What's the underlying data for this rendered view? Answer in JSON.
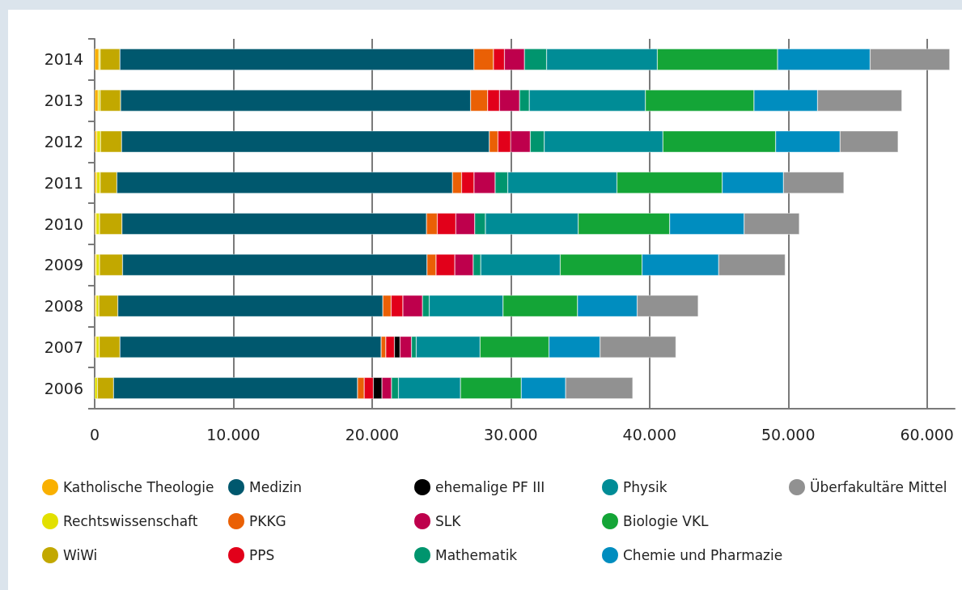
{
  "chart_data": {
    "type": "bar",
    "orientation": "horizontal",
    "stacked": true,
    "categories": [
      "2014",
      "2013",
      "2012",
      "2011",
      "2010",
      "2009",
      "2008",
      "2007",
      "2006"
    ],
    "xlim": [
      0,
      62000
    ],
    "xticks": [
      {
        "value": 0,
        "label": "0"
      },
      {
        "value": 10000,
        "label": "10.000"
      },
      {
        "value": 20000,
        "label": "20.000"
      },
      {
        "value": 30000,
        "label": "30.000"
      },
      {
        "value": 40000,
        "label": "40.000"
      },
      {
        "value": 50000,
        "label": "50.000"
      },
      {
        "value": 60000,
        "label": "60.000"
      }
    ],
    "grid": "x",
    "legend": "bottom",
    "marker": "circle",
    "series": [
      {
        "name": "Katholische Theologie",
        "color": "#f9b000",
        "values": [
          300,
          250,
          150,
          130,
          100,
          100,
          100,
          100,
          null
        ]
      },
      {
        "name": "Rechtswissenschaft",
        "color": "#e2e000",
        "values": [
          100,
          150,
          270,
          270,
          250,
          250,
          200,
          230,
          200
        ]
      },
      {
        "name": "WiWi",
        "color": "#c2a800",
        "values": [
          1420,
          1470,
          1520,
          1200,
          1620,
          1660,
          1370,
          1490,
          1160
        ]
      },
      {
        "name": "Medizin",
        "color": "#00586e",
        "values": [
          25520,
          25230,
          26510,
          24190,
          21950,
          21950,
          19100,
          18830,
          17590
        ]
      },
      {
        "name": "PKKG",
        "color": "#ea6005",
        "values": [
          1410,
          1230,
          620,
          660,
          780,
          650,
          600,
          340,
          480
        ]
      },
      {
        "name": "PPS",
        "color": "#e2001a",
        "values": [
          790,
          850,
          920,
          900,
          1330,
          1350,
          850,
          620,
          660
        ]
      },
      {
        "name": "ehemalige PF III",
        "color": "#000000",
        "values": [
          null,
          null,
          null,
          null,
          null,
          null,
          null,
          400,
          620
        ]
      },
      {
        "name": "SLK",
        "color": "#be004c",
        "values": [
          1440,
          1450,
          1410,
          1520,
          1370,
          1330,
          1410,
          830,
          690
        ]
      },
      {
        "name": "Mathematik",
        "color": "#00956e",
        "values": [
          1600,
          700,
          1010,
          910,
          770,
          540,
          490,
          340,
          500
        ]
      },
      {
        "name": "Physik",
        "color": "#008c96",
        "values": [
          7980,
          8370,
          8550,
          7870,
          6690,
          5730,
          5320,
          4600,
          4470
        ]
      },
      {
        "name": "Biologie VKL",
        "color": "#14a537",
        "values": [
          8670,
          7830,
          8130,
          7590,
          6590,
          5900,
          5370,
          4970,
          4380
        ]
      },
      {
        "name": "Chemie und Pharmazie",
        "color": "#008dbf",
        "values": [
          6670,
          4580,
          4640,
          4410,
          5370,
          5520,
          4300,
          3680,
          3200
        ]
      },
      {
        "name": "Überfakultäre Mittel",
        "color": "#919191",
        "values": [
          5740,
          6080,
          4190,
          4360,
          3980,
          4800,
          4400,
          5470,
          4840
        ]
      }
    ]
  }
}
